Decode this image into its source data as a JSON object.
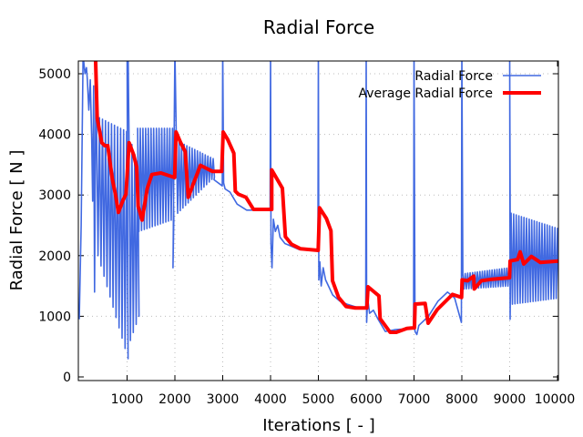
{
  "chart_data": {
    "type": "line",
    "title": "Radial Force",
    "xlabel": "Iterations [ - ]",
    "ylabel": "Radial Force [ N ]",
    "xlim": [
      0,
      10000
    ],
    "ylim": [
      -60,
      5210
    ],
    "xticks": [
      1000,
      2000,
      3000,
      4000,
      5000,
      6000,
      7000,
      8000,
      9000,
      10000
    ],
    "yticks": [
      0,
      1000,
      2000,
      3000,
      4000,
      5000
    ],
    "grid": true,
    "legend_position": "top-right",
    "series": [
      {
        "name": "Radial Force",
        "color": "#4169E1",
        "note_format": "pieces: [x,y] points or oscillation ranges {x0,x1,period,hi:[start,end],lo:[start,end]}",
        "pieces": [
          [
            0,
            950
          ],
          [
            40,
            2500
          ],
          [
            80,
            5300
          ],
          [
            120,
            5000
          ],
          [
            150,
            5100
          ],
          [
            170,
            4900
          ],
          [
            200,
            4400
          ],
          [
            230,
            4900
          ],
          [
            260,
            3900
          ],
          [
            280,
            2900
          ],
          [
            300,
            4800
          ],
          [
            320,
            1400
          ],
          [
            350,
            5300
          ],
          {
            "x0": 360,
            "x1": 990,
            "period": 63,
            "hi": [
              4300,
              4050
            ],
            "lo": [
              2000,
              300
            ]
          },
          [
            1000,
            5400
          ],
          [
            1020,
            5400
          ],
          {
            "x0": 1040,
            "x1": 1220,
            "period": 60,
            "hi": [
              4000,
              3500
            ],
            "lo": [
              600,
              1000
            ]
          },
          {
            "x0": 1220,
            "x1": 1950,
            "period": 55,
            "hi": [
              4100,
              4100
            ],
            "lo": [
              2400,
              2600
            ]
          },
          [
            1960,
            1800
          ],
          [
            2000,
            5400
          ],
          {
            "x0": 2030,
            "x1": 2800,
            "period": 55,
            "hi": [
              3900,
              3600
            ],
            "lo": [
              2700,
              3300
            ]
          },
          [
            2820,
            3250
          ],
          [
            2990,
            3150
          ],
          [
            3000,
            5400
          ],
          [
            3020,
            3200
          ],
          [
            3050,
            3100
          ],
          [
            3150,
            3050
          ],
          [
            3300,
            2850
          ],
          [
            3500,
            2750
          ],
          [
            3990,
            2750
          ],
          [
            4000,
            5400
          ],
          [
            4010,
            2200
          ],
          [
            4030,
            1800
          ],
          [
            4060,
            2600
          ],
          [
            4100,
            2400
          ],
          [
            4150,
            2500
          ],
          [
            4200,
            2300
          ],
          [
            4300,
            2200
          ],
          [
            4600,
            2100
          ],
          [
            4990,
            2080
          ],
          [
            5000,
            5400
          ],
          [
            5010,
            1600
          ],
          [
            5030,
            1900
          ],
          [
            5060,
            1500
          ],
          [
            5100,
            1800
          ],
          [
            5150,
            1600
          ],
          [
            5300,
            1350
          ],
          [
            5450,
            1250
          ],
          [
            5600,
            1200
          ],
          [
            5800,
            1150
          ],
          [
            5990,
            1150
          ],
          [
            6000,
            5400
          ],
          [
            6010,
            900
          ],
          [
            6030,
            1300
          ],
          [
            6070,
            1050
          ],
          [
            6150,
            1100
          ],
          [
            6250,
            950
          ],
          [
            6400,
            750
          ],
          [
            6600,
            780
          ],
          [
            6990,
            800
          ],
          [
            7000,
            5400
          ],
          [
            7020,
            750
          ],
          [
            7060,
            700
          ],
          [
            7100,
            850
          ],
          [
            7300,
            1000
          ],
          [
            7500,
            1250
          ],
          [
            7700,
            1400
          ],
          [
            7850,
            1300
          ],
          [
            7990,
            900
          ],
          [
            8000,
            5400
          ],
          {
            "x0": 8020,
            "x1": 8990,
            "period": 50,
            "hi": [
              1700,
              1800
            ],
            "lo": [
              1450,
              1500
            ]
          },
          [
            9000,
            5400
          ],
          [
            9010,
            950
          ],
          {
            "x0": 9030,
            "x1": 10000,
            "period": 55,
            "hi": [
              2700,
              2450
            ],
            "lo": [
              1200,
              1300
            ]
          }
        ]
      },
      {
        "name": "Average Radial Force",
        "color": "#FF0000",
        "points": [
          [
            340,
            5300
          ],
          [
            375,
            4264
          ],
          [
            470,
            3864
          ],
          [
            533,
            3814
          ],
          [
            597,
            3814
          ],
          [
            692,
            3263
          ],
          [
            756,
            3013
          ],
          [
            819,
            2713
          ],
          [
            914,
            2913
          ],
          [
            977,
            3013
          ],
          [
            1042,
            3864
          ],
          [
            1137,
            3664
          ],
          [
            1200,
            3464
          ],
          [
            1232,
            2813
          ],
          [
            1314,
            2587
          ],
          [
            1423,
            3113
          ],
          [
            1518,
            3338
          ],
          [
            1709,
            3364
          ],
          [
            1994,
            3288
          ],
          [
            2025,
            4039
          ],
          [
            2120,
            3864
          ],
          [
            2215,
            3714
          ],
          [
            2280,
            2963
          ],
          [
            2375,
            3163
          ],
          [
            2533,
            3489
          ],
          [
            2787,
            3389
          ],
          [
            2979,
            3389
          ],
          [
            3010,
            4039
          ],
          [
            3105,
            3914
          ],
          [
            3232,
            3689
          ],
          [
            3263,
            3063
          ],
          [
            3327,
            3013
          ],
          [
            3486,
            2963
          ],
          [
            3644,
            2763
          ],
          [
            4025,
            2763
          ],
          [
            4025,
            3414
          ],
          [
            4248,
            3113
          ],
          [
            4310,
            2312
          ],
          [
            4438,
            2187
          ],
          [
            4629,
            2112
          ],
          [
            4996,
            2087
          ],
          [
            5024,
            2788
          ],
          [
            5168,
            2613
          ],
          [
            5263,
            2412
          ],
          [
            5295,
            1587
          ],
          [
            5423,
            1311
          ],
          [
            5581,
            1161
          ],
          [
            5771,
            1136
          ],
          [
            6013,
            1136
          ],
          [
            6038,
            1486
          ],
          [
            6267,
            1336
          ],
          [
            6292,
            961
          ],
          [
            6501,
            736
          ],
          [
            6629,
            736
          ],
          [
            6851,
            800
          ],
          [
            7010,
            811
          ],
          [
            7022,
            1201
          ],
          [
            7232,
            1211
          ],
          [
            7295,
            886
          ],
          [
            7486,
            1111
          ],
          [
            7803,
            1361
          ],
          [
            7994,
            1311
          ],
          [
            8006,
            1601
          ],
          [
            8120,
            1586
          ],
          [
            8248,
            1661
          ],
          [
            8260,
            1450
          ],
          [
            8406,
            1586
          ],
          [
            8629,
            1611
          ],
          [
            8997,
            1637
          ],
          [
            9010,
            1911
          ],
          [
            9168,
            1937
          ],
          [
            9219,
            2062
          ],
          [
            9295,
            1862
          ],
          [
            9454,
            1987
          ],
          [
            9644,
            1887
          ],
          [
            10020,
            1911
          ]
        ]
      }
    ]
  }
}
